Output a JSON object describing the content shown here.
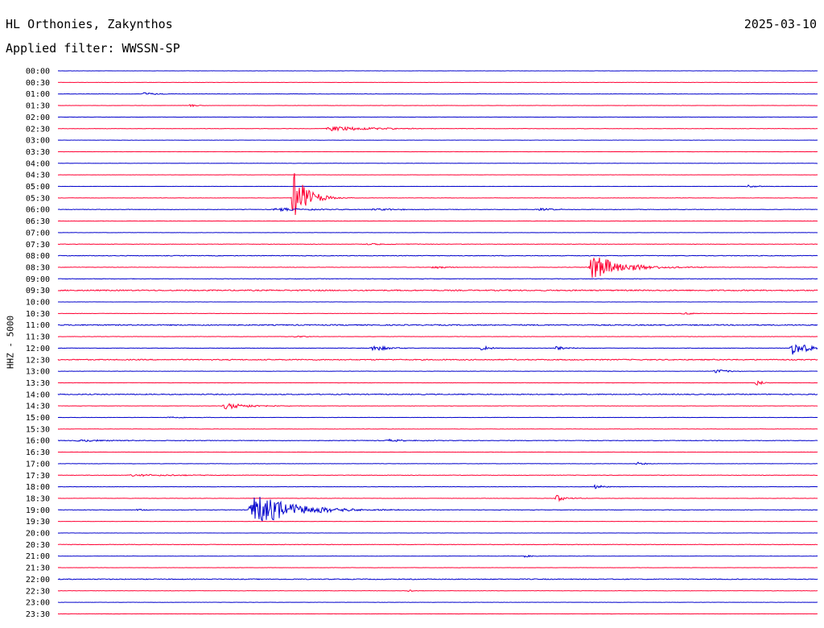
{
  "header": {
    "station": "HL Orthonies, Zakynthos",
    "filter": "Applied filter: WWSSN-SP",
    "date": "2025-03-10"
  },
  "chart_data": {
    "type": "line",
    "title": "HL Orthonies, Zakynthos",
    "subtitle": "Applied filter: WWSSN-SP",
    "ylabel": "HHZ - 5000",
    "xlabel": "",
    "colors": [
      "#0000cc",
      "#ff0033"
    ],
    "rows": [
      {
        "label": "00:00",
        "color": "#0000cc",
        "noise": 0.3,
        "events": []
      },
      {
        "label": "00:30",
        "color": "#ff0033",
        "noise": 0.3,
        "events": []
      },
      {
        "label": "01:00",
        "color": "#0000cc",
        "noise": 0.4,
        "events": [
          {
            "t": 0.11,
            "amp": 2,
            "dur": 0.02
          }
        ]
      },
      {
        "label": "01:30",
        "color": "#ff0033",
        "noise": 0.3,
        "events": [
          {
            "t": 0.172,
            "amp": 2,
            "dur": 0.01
          }
        ]
      },
      {
        "label": "02:00",
        "color": "#0000cc",
        "noise": 0.3,
        "events": []
      },
      {
        "label": "02:30",
        "color": "#ff0033",
        "noise": 0.4,
        "events": [
          {
            "t": 0.35,
            "amp": 3,
            "dur": 0.07
          }
        ]
      },
      {
        "label": "03:00",
        "color": "#0000cc",
        "noise": 0.3,
        "events": []
      },
      {
        "label": "03:30",
        "color": "#ff0033",
        "noise": 0.3,
        "events": []
      },
      {
        "label": "04:00",
        "color": "#0000cc",
        "noise": 0.3,
        "events": []
      },
      {
        "label": "04:30",
        "color": "#ff0033",
        "noise": 0.3,
        "events": []
      },
      {
        "label": "05:00",
        "color": "#0000cc",
        "noise": 0.3,
        "events": [
          {
            "t": 0.905,
            "amp": 2,
            "dur": 0.015
          }
        ]
      },
      {
        "label": "05:30",
        "color": "#ff0033",
        "noise": 0.4,
        "events": [
          {
            "t": 0.307,
            "amp": 35,
            "dur": 0.02
          }
        ]
      },
      {
        "label": "06:00",
        "color": "#0000cc",
        "noise": 0.6,
        "events": [
          {
            "t": 0.28,
            "amp": 2,
            "dur": 0.05
          },
          {
            "t": 0.41,
            "amp": 1.5,
            "dur": 0.04
          },
          {
            "t": 0.63,
            "amp": 1.5,
            "dur": 0.03
          }
        ]
      },
      {
        "label": "06:30",
        "color": "#ff0033",
        "noise": 0.4,
        "events": []
      },
      {
        "label": "07:00",
        "color": "#0000cc",
        "noise": 0.3,
        "events": []
      },
      {
        "label": "07:30",
        "color": "#ff0033",
        "noise": 0.5,
        "events": [
          {
            "t": 0.4,
            "amp": 1,
            "dur": 0.05
          }
        ]
      },
      {
        "label": "08:00",
        "color": "#0000cc",
        "noise": 0.8,
        "events": []
      },
      {
        "label": "08:30",
        "color": "#ff0033",
        "noise": 0.5,
        "events": [
          {
            "t": 0.49,
            "amp": 2,
            "dur": 0.02
          },
          {
            "t": 0.697,
            "amp": 16,
            "dur": 0.045
          }
        ]
      },
      {
        "label": "09:00",
        "color": "#0000cc",
        "noise": 0.6,
        "events": []
      },
      {
        "label": "09:30",
        "color": "#ff0033",
        "noise": 1.4,
        "events": []
      },
      {
        "label": "10:00",
        "color": "#0000cc",
        "noise": 0.3,
        "events": []
      },
      {
        "label": "10:30",
        "color": "#ff0033",
        "noise": 0.4,
        "events": [
          {
            "t": 0.82,
            "amp": 1.5,
            "dur": 0.02
          }
        ]
      },
      {
        "label": "11:00",
        "color": "#0000cc",
        "noise": 1.3,
        "events": []
      },
      {
        "label": "11:30",
        "color": "#ff0033",
        "noise": 0.4,
        "events": [
          {
            "t": 0.31,
            "amp": 1.5,
            "dur": 0.015
          }
        ]
      },
      {
        "label": "12:00",
        "color": "#0000cc",
        "noise": 0.5,
        "events": [
          {
            "t": 0.41,
            "amp": 5,
            "dur": 0.02
          },
          {
            "t": 0.555,
            "amp": 3,
            "dur": 0.015
          },
          {
            "t": 0.652,
            "amp": 2.5,
            "dur": 0.02
          },
          {
            "t": 0.963,
            "amp": 9,
            "dur": 0.025
          }
        ]
      },
      {
        "label": "12:30",
        "color": "#ff0033",
        "noise": 1.2,
        "events": []
      },
      {
        "label": "13:00",
        "color": "#0000cc",
        "noise": 0.4,
        "events": [
          {
            "t": 0.862,
            "amp": 3,
            "dur": 0.02
          }
        ]
      },
      {
        "label": "13:30",
        "color": "#ff0033",
        "noise": 0.4,
        "events": [
          {
            "t": 0.918,
            "amp": 5,
            "dur": 0.008
          }
        ]
      },
      {
        "label": "14:00",
        "color": "#0000cc",
        "noise": 1.1,
        "events": []
      },
      {
        "label": "14:30",
        "color": "#ff0033",
        "noise": 0.4,
        "events": [
          {
            "t": 0.215,
            "amp": 4,
            "dur": 0.04
          }
        ]
      },
      {
        "label": "15:00",
        "color": "#0000cc",
        "noise": 0.4,
        "events": [
          {
            "t": 0.14,
            "amp": 1,
            "dur": 0.04
          }
        ]
      },
      {
        "label": "15:30",
        "color": "#ff0033",
        "noise": 0.4,
        "events": []
      },
      {
        "label": "16:00",
        "color": "#0000cc",
        "noise": 0.7,
        "events": [
          {
            "t": 0.02,
            "amp": 1.5,
            "dur": 0.05
          },
          {
            "t": 0.43,
            "amp": 1.5,
            "dur": 0.03
          }
        ]
      },
      {
        "label": "16:30",
        "color": "#ff0033",
        "noise": 0.3,
        "events": []
      },
      {
        "label": "17:00",
        "color": "#0000cc",
        "noise": 0.4,
        "events": [
          {
            "t": 0.76,
            "amp": 2,
            "dur": 0.015
          }
        ]
      },
      {
        "label": "17:30",
        "color": "#ff0033",
        "noise": 0.5,
        "events": [
          {
            "t": 0.09,
            "amp": 1.5,
            "dur": 0.08
          }
        ]
      },
      {
        "label": "18:00",
        "color": "#0000cc",
        "noise": 0.4,
        "events": [
          {
            "t": 0.705,
            "amp": 3,
            "dur": 0.015
          }
        ]
      },
      {
        "label": "18:30",
        "color": "#ff0033",
        "noise": 0.4,
        "events": [
          {
            "t": 0.654,
            "amp": 4,
            "dur": 0.015
          }
        ]
      },
      {
        "label": "19:00",
        "color": "#0000cc",
        "noise": 0.6,
        "events": [
          {
            "t": 0.25,
            "amp": 20,
            "dur": 0.06
          },
          {
            "t": 0.1,
            "amp": 1,
            "dur": 0.02
          }
        ]
      },
      {
        "label": "19:30",
        "color": "#ff0033",
        "noise": 0.3,
        "events": []
      },
      {
        "label": "20:00",
        "color": "#0000cc",
        "noise": 0.3,
        "events": []
      },
      {
        "label": "20:30",
        "color": "#ff0033",
        "noise": 0.6,
        "events": []
      },
      {
        "label": "21:00",
        "color": "#0000cc",
        "noise": 0.3,
        "events": [
          {
            "t": 0.61,
            "amp": 2,
            "dur": 0.012
          }
        ]
      },
      {
        "label": "21:30",
        "color": "#ff0033",
        "noise": 0.3,
        "events": []
      },
      {
        "label": "22:00",
        "color": "#0000cc",
        "noise": 1.0,
        "events": []
      },
      {
        "label": "22:30",
        "color": "#ff0033",
        "noise": 0.4,
        "events": [
          {
            "t": 0.46,
            "amp": 1.5,
            "dur": 0.01
          }
        ]
      },
      {
        "label": "23:00",
        "color": "#0000cc",
        "noise": 0.3,
        "events": []
      },
      {
        "label": "23:30",
        "color": "#ff0033",
        "noise": 0.3,
        "events": []
      }
    ]
  }
}
